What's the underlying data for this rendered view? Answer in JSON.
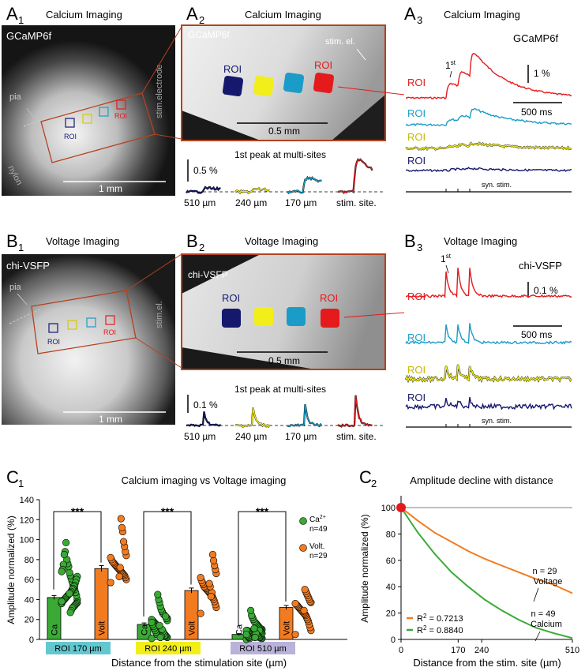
{
  "colors": {
    "red": "#e41a1c",
    "cyan": "#1b9cc8",
    "yellow": "#f2ee1a",
    "navy": "#16186e",
    "green": "#3aaa35",
    "orange": "#f27b20",
    "frame": "#b5411f"
  },
  "panels": {
    "a1": {
      "letter": "A",
      "num": "1",
      "title": "Calcium Imaging",
      "sensor": "GCaMP6f",
      "pia": "pia",
      "nylon": "nylon",
      "electrode": "stim.electrode",
      "roi": "ROI",
      "scale": "1 mm"
    },
    "a2": {
      "letter": "A",
      "num": "2",
      "title": "Calcium Imaging",
      "sensor": "GCaMP6f",
      "electrode": "stim. el.",
      "roi": "ROI",
      "scale": "0.5 mm",
      "peak_title": "1st peak at multi-sites",
      "peak_scale": "0.5 %",
      "sites": [
        "510 µm",
        "240 µm",
        "170 µm",
        "stim. site."
      ]
    },
    "a3": {
      "letter": "A",
      "num": "3",
      "title": "Calcium Imaging",
      "sensor": "GCaMP6f",
      "first": "1",
      "first_sup": "st",
      "amp_scale": "1 %",
      "time_scale": "500 ms",
      "roi": "ROI",
      "stim": "syn. stim."
    },
    "b1": {
      "letter": "B",
      "num": "1",
      "title": "Voltage Imaging",
      "sensor": "chi-VSFP",
      "pia": "pia",
      "electrode": "stim.el.",
      "roi": "ROI",
      "scale": "1 mm"
    },
    "b2": {
      "letter": "B",
      "num": "2",
      "title": "Voltage Imaging",
      "sensor": "chi-VSFP",
      "roi": "ROI",
      "scale": "0.5 mm",
      "peak_title": "1st peak at multi-sites",
      "peak_scale": "0.1 %",
      "sites": [
        "510 µm",
        "240 µm",
        "170 µm",
        "stim. site."
      ]
    },
    "b3": {
      "letter": "B",
      "num": "3",
      "title": "Voltage Imaging",
      "sensor": "chi-VSFP",
      "first": "1",
      "first_sup": "st",
      "amp_scale": "0.1 %",
      "time_scale": "500 ms",
      "roi": "ROI",
      "stim": "syn. stim."
    }
  },
  "chart_data": [
    {
      "id": "C1",
      "type": "bar",
      "panel_letter": "C",
      "panel_num": "1",
      "title": "Calcium imaging vs Voltage imaging",
      "xlabel": "Distance from the stimulation site (µm)",
      "ylabel": "Amplitude normalized (%)",
      "ylim": [
        0,
        140
      ],
      "yticks": [
        0,
        20,
        40,
        60,
        80,
        100,
        120,
        140
      ],
      "categories": [
        "ROI 170 µm",
        "ROI 240 µm",
        "ROI 510 µm"
      ],
      "category_colors": [
        "#62c7cf",
        "#f2ee1a",
        "#b9b2d9"
      ],
      "series": [
        {
          "name": "Ca",
          "legend": "Ca2+",
          "n_label": "n=49",
          "values": [
            42,
            15,
            5
          ],
          "errors": [
            2,
            1.5,
            0.8
          ],
          "color": "#3aaa35",
          "points": [
            [
              36,
              40,
              44,
              47,
              50,
              52,
              55,
              58,
              61,
              64,
              67,
              73,
              76,
              80,
              97,
              88,
              85,
              75,
              70,
              68,
              63,
              60,
              57,
              54,
              53,
              51,
              50,
              48,
              47,
              46,
              45,
              44,
              43,
              42,
              41,
              40,
              39,
              38,
              38,
              37,
              36,
              35,
              34,
              33,
              32,
              31,
              29,
              27,
              46
            ],
            [
              1,
              2,
              3,
              4,
              5,
              6,
              7,
              8,
              9,
              10,
              11,
              12,
              13,
              14,
              15,
              16,
              17,
              18,
              19,
              20,
              21,
              22,
              23,
              24,
              25,
              26,
              28,
              30,
              33,
              37,
              40,
              45,
              5,
              7,
              9,
              11,
              13,
              15,
              17,
              19,
              21,
              23,
              4,
              6,
              8,
              10,
              3,
              2,
              14
            ],
            [
              0,
              1,
              1,
              2,
              2,
              3,
              3,
              4,
              4,
              5,
              5,
              5,
              6,
              6,
              7,
              7,
              8,
              8,
              9,
              9,
              10,
              10,
              11,
              12,
              13,
              14,
              15,
              16,
              17,
              18,
              20,
              22,
              24,
              29,
              1,
              2,
              3,
              4,
              5,
              6,
              7,
              8,
              9,
              3,
              4,
              5,
              6,
              2,
              11
            ]
          ]
        },
        {
          "name": "Volt",
          "legend": "Volt.",
          "n_label": "n=29",
          "values": [
            71,
            49,
            32
          ],
          "errors": [
            3,
            2.5,
            2
          ],
          "color": "#f27b20",
          "points": [
            [
              57,
              60,
              62,
              64,
              65,
              66,
              67,
              68,
              69,
              70,
              71,
              72,
              73,
              74,
              75,
              76,
              77,
              78,
              80,
              82,
              84,
              88,
              93,
              98,
              108,
              112,
              121,
              72,
              63
            ],
            [
              26,
              32,
              35,
              38,
              40,
              42,
              44,
              45,
              46,
              47,
              48,
              49,
              50,
              51,
              52,
              53,
              55,
              57,
              59,
              62,
              66,
              70,
              74,
              79,
              85,
              47,
              43,
              53,
              56
            ],
            [
              5,
              9,
              12,
              15,
              18,
              20,
              22,
              24,
              25,
              26,
              27,
              28,
              29,
              30,
              31,
              32,
              33,
              34,
              35,
              36,
              37,
              38,
              40,
              42,
              44,
              46,
              48,
              50,
              29
            ]
          ]
        }
      ],
      "significance": [
        "***",
        "***",
        "***"
      ]
    },
    {
      "id": "C2",
      "type": "line",
      "panel_letter": "C",
      "panel_num": "2",
      "title": "Amplitude decline with distance",
      "xlabel": "Distance from the stim. site (µm)",
      "ylabel": "Amplitude normalized (%)",
      "xlim": [
        0,
        510
      ],
      "ylim": [
        0,
        100
      ],
      "xticks": [
        0,
        170,
        240,
        510
      ],
      "yticks": [
        0,
        20,
        40,
        60,
        80,
        100
      ],
      "reference_line": 100,
      "origin_point": [
        0,
        100
      ],
      "series": [
        {
          "name": "Voltage",
          "n_label": "n = 29",
          "r2_label": "R2 = 0.7213",
          "color": "#f27b20",
          "x": [
            0,
            50,
            100,
            150,
            200,
            250,
            300,
            350,
            400,
            450,
            510
          ],
          "y": [
            100,
            90,
            81,
            74,
            67,
            61,
            56,
            51,
            46,
            42,
            35
          ]
        },
        {
          "name": "Calcium",
          "n_label": "n = 49",
          "r2_label": "R2 = 0.8840",
          "color": "#3aaa35",
          "x": [
            0,
            50,
            100,
            150,
            200,
            250,
            300,
            350,
            400,
            450,
            510
          ],
          "y": [
            100,
            81,
            65,
            51,
            40,
            30,
            22,
            15,
            9,
            5,
            1
          ]
        }
      ]
    }
  ]
}
